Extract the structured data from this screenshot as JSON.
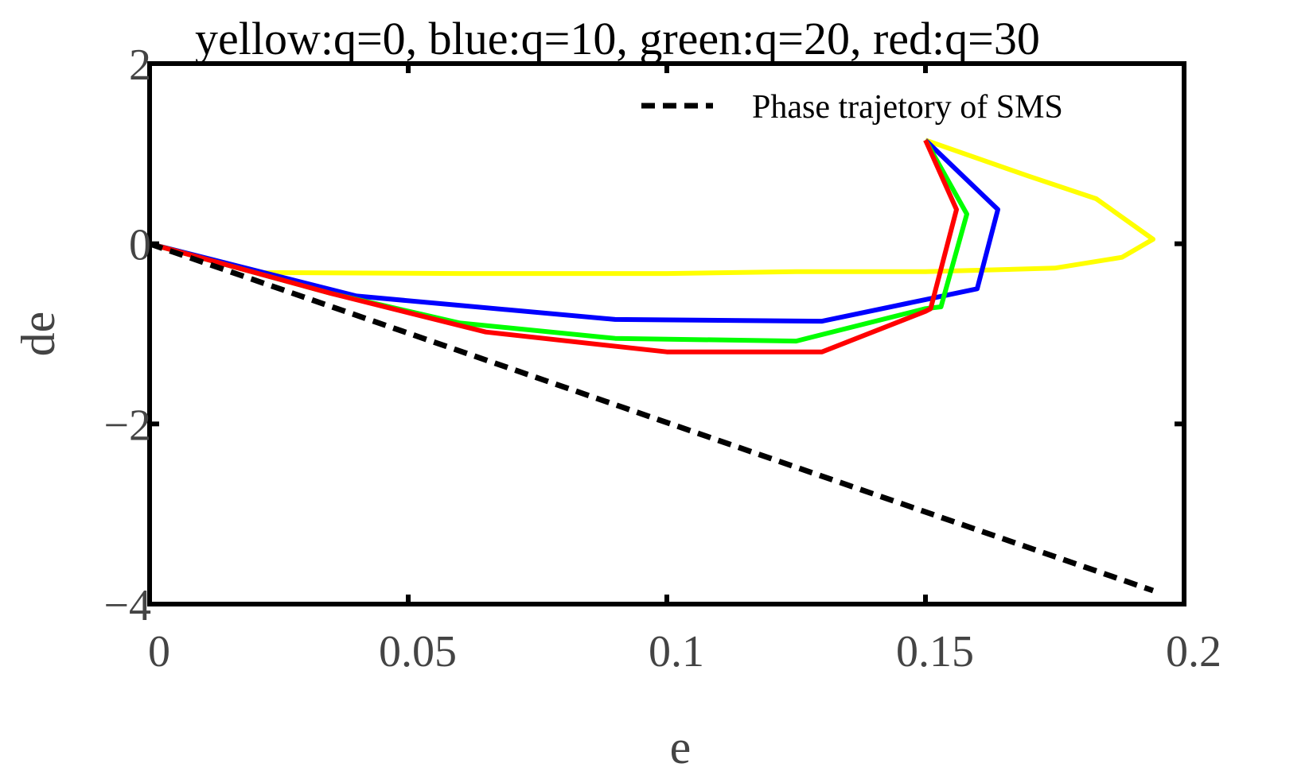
{
  "chart_data": {
    "type": "line",
    "title": "yellow:q=0, blue:q=10, green:q=20, red:q=30",
    "xlabel": "e",
    "ylabel": "de",
    "xlim": [
      0,
      0.2
    ],
    "ylim": [
      -4,
      2
    ],
    "xticks": [
      0,
      0.05,
      0.1,
      0.15,
      0.2
    ],
    "xtick_labels": [
      "0",
      "0.05",
      "0.1",
      "0.15",
      "0.2"
    ],
    "yticks": [
      2,
      0,
      -2,
      -4
    ],
    "ytick_labels": [
      "2",
      "0",
      "−2",
      "−4"
    ],
    "grid": false,
    "legend_position": "top-right",
    "series": [
      {
        "name": "",
        "color": "#ffff00",
        "dash": "solid",
        "points": [
          [
            0,
            0
          ],
          [
            0.022,
            -0.32
          ],
          [
            0.06,
            -0.33
          ],
          [
            0.1,
            -0.33
          ],
          [
            0.125,
            -0.31
          ],
          [
            0.15,
            -0.31
          ],
          [
            0.163,
            -0.29
          ],
          [
            0.175,
            -0.27
          ],
          [
            0.188,
            -0.15
          ],
          [
            0.194,
            0.05
          ],
          [
            0.183,
            0.5
          ],
          [
            0.17,
            0.75
          ],
          [
            0.15,
            1.15
          ]
        ]
      },
      {
        "name": "",
        "color": "#0000ff",
        "dash": "solid",
        "points": [
          [
            0,
            0
          ],
          [
            0.04,
            -0.58
          ],
          [
            0.09,
            -0.84
          ],
          [
            0.13,
            -0.86
          ],
          [
            0.15,
            -0.62
          ],
          [
            0.16,
            -0.5
          ],
          [
            0.164,
            0.38
          ],
          [
            0.15,
            1.15
          ]
        ]
      },
      {
        "name": "",
        "color": "#00ff00",
        "dash": "solid",
        "points": [
          [
            0,
            0
          ],
          [
            0.035,
            -0.55
          ],
          [
            0.06,
            -0.88
          ],
          [
            0.09,
            -1.05
          ],
          [
            0.125,
            -1.08
          ],
          [
            0.15,
            -0.72
          ],
          [
            0.153,
            -0.7
          ],
          [
            0.158,
            0.33
          ],
          [
            0.15,
            1.15
          ]
        ]
      },
      {
        "name": "",
        "color": "#ff0000",
        "dash": "solid",
        "points": [
          [
            0,
            0
          ],
          [
            0.035,
            -0.55
          ],
          [
            0.065,
            -0.98
          ],
          [
            0.1,
            -1.2
          ],
          [
            0.13,
            -1.2
          ],
          [
            0.15,
            -0.75
          ],
          [
            0.151,
            -0.72
          ],
          [
            0.156,
            0.38
          ],
          [
            0.15,
            1.15
          ]
        ]
      },
      {
        "name": "Phase trajetory of SMS",
        "color": "#000000",
        "dash": "dashed",
        "points": [
          [
            0,
            0
          ],
          [
            0.194,
            -3.85
          ]
        ]
      }
    ]
  }
}
